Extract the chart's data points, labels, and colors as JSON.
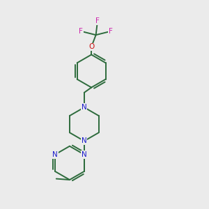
{
  "background_color": "#ebebeb",
  "bond_color": "#2d6b3c",
  "n_color": "#1a1acc",
  "o_color": "#cc1111",
  "f_color": "#cc22aa",
  "figsize": [
    3.0,
    3.0
  ],
  "dpi": 100,
  "xlim": [
    0,
    10
  ],
  "ylim": [
    0,
    10
  ]
}
